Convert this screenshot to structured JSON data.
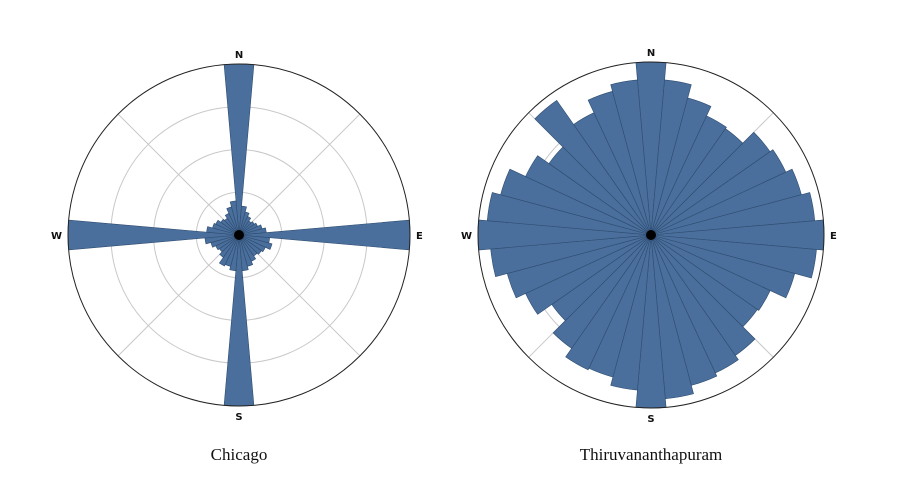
{
  "colors": {
    "bar_fill": "#4a6f9c",
    "bar_edge": "#2e4c70",
    "grid": "#c8c8c8",
    "frame": "#222222"
  },
  "compass": {
    "north": "N",
    "east": "E",
    "south": "S",
    "west": "W"
  },
  "chart_data": [
    {
      "type": "polar-bar",
      "caption": "Chicago",
      "bins": 36,
      "rmax": 1.0,
      "rings": [
        0.25,
        0.5,
        0.75,
        1.0
      ],
      "spokes_deg": [
        45,
        135,
        225,
        315
      ],
      "grid": true,
      "directions_deg": [
        0,
        10,
        20,
        30,
        40,
        50,
        60,
        70,
        80,
        90,
        100,
        110,
        120,
        130,
        140,
        150,
        160,
        170,
        180,
        190,
        200,
        210,
        220,
        230,
        240,
        250,
        260,
        270,
        280,
        290,
        300,
        310,
        320,
        330,
        340,
        350
      ],
      "values": [
        1.0,
        0.17,
        0.14,
        0.12,
        0.1,
        0.11,
        0.12,
        0.14,
        0.16,
        1.0,
        0.18,
        0.2,
        0.17,
        0.16,
        0.15,
        0.17,
        0.19,
        0.21,
        1.0,
        0.21,
        0.19,
        0.2,
        0.16,
        0.14,
        0.15,
        0.17,
        0.2,
        1.0,
        0.19,
        0.16,
        0.15,
        0.13,
        0.12,
        0.14,
        0.17,
        0.2
      ]
    },
    {
      "type": "polar-bar",
      "caption": "Thiruvananthapuram",
      "bins": 36,
      "rmax": 1.0,
      "rings": [
        0.25,
        0.5,
        0.75,
        1.0
      ],
      "spokes_deg": [
        45,
        135,
        225,
        315
      ],
      "grid": true,
      "directions_deg": [
        0,
        10,
        20,
        30,
        40,
        50,
        60,
        70,
        80,
        90,
        100,
        110,
        120,
        130,
        140,
        150,
        160,
        170,
        180,
        190,
        200,
        210,
        220,
        230,
        240,
        250,
        260,
        270,
        280,
        290,
        300,
        310,
        320,
        330,
        340,
        350
      ],
      "values": [
        1.0,
        0.9,
        0.82,
        0.76,
        0.75,
        0.84,
        0.86,
        0.9,
        0.95,
        1.0,
        0.96,
        0.86,
        0.76,
        0.75,
        0.85,
        0.88,
        0.9,
        0.95,
        1.0,
        0.9,
        0.85,
        0.86,
        0.8,
        0.7,
        0.8,
        0.86,
        0.93,
        1.0,
        0.95,
        0.9,
        0.8,
        0.72,
        0.95,
        0.78,
        0.86,
        0.9
      ]
    }
  ]
}
